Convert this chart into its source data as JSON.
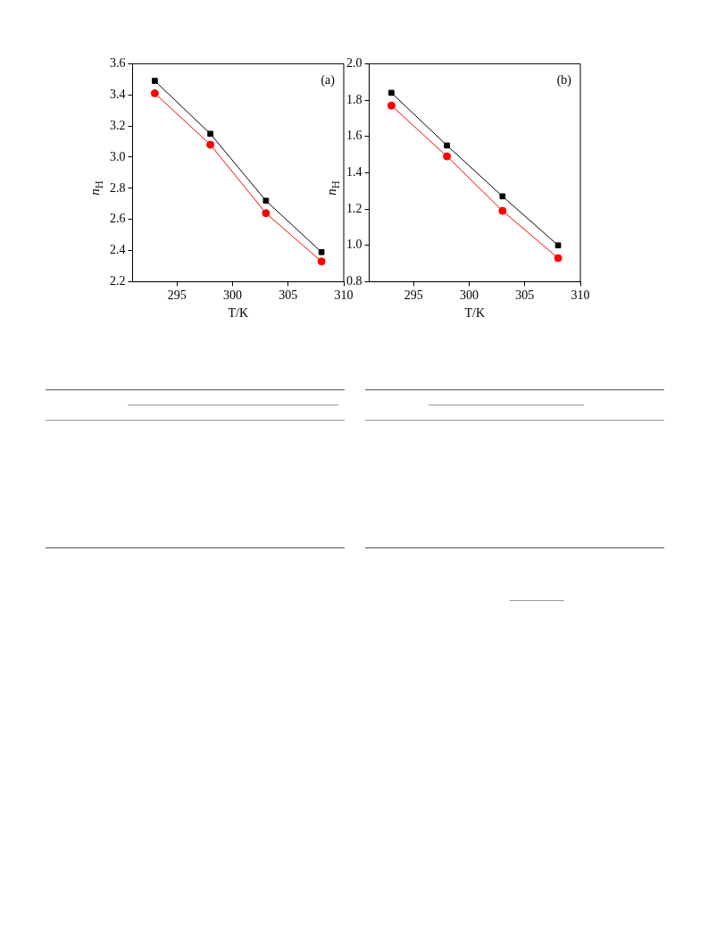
{
  "chart_data": [
    {
      "type": "line",
      "xlabel": "T/K",
      "ylabel": "n$_{H}$",
      "x": [
        293,
        298,
        303,
        308
      ],
      "xlim": [
        291,
        310
      ],
      "xticks": [
        295,
        300,
        305,
        310
      ],
      "ylim": [
        2.2,
        3.6
      ],
      "yticks": [
        2.2,
        2.4,
        2.6,
        2.8,
        {
          "value": 3,
          "label": "3.0"
        },
        3.2,
        3.4,
        3.6
      ],
      "grid": false,
      "legend": false,
      "annotations": [
        "(a)"
      ],
      "series": [
        {
          "color": "#000000",
          "marker": "square",
          "values": [
            3.49,
            3.15,
            2.72,
            2.39
          ]
        },
        {
          "color": "#ff0000",
          "marker": "circle",
          "values": [
            3.41,
            3.08,
            2.64,
            2.33
          ]
        }
      ]
    },
    {
      "type": "line",
      "xlabel": "T/K",
      "ylabel": "n$_{H}$",
      "x": [
        293,
        298,
        303,
        308
      ],
      "xlim": [
        291,
        310
      ],
      "xticks": [
        295,
        300,
        305,
        310
      ],
      "ylim": [
        0.8,
        2.0
      ],
      "yticks": [
        0.8,
        {
          "value": 1,
          "label": "1.0"
        },
        1.2,
        1.4,
        1.6,
        1.8,
        {
          "value": 2,
          "label": "2.0"
        }
      ],
      "grid": false,
      "legend": false,
      "annotations": [
        "(b)"
      ],
      "series": [
        {
          "color": "#000000",
          "marker": "square",
          "values": [
            1.84,
            1.55,
            1.27,
            1.0
          ]
        },
        {
          "color": "#ff0000",
          "marker": "circle",
          "values": [
            1.77,
            1.49,
            1.19,
            0.93
          ]
        }
      ]
    }
  ]
}
